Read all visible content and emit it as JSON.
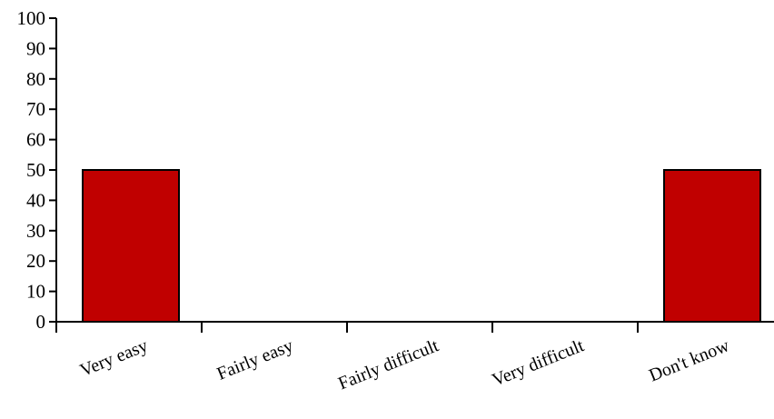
{
  "chart_data": {
    "type": "bar",
    "categories": [
      "Very easy",
      "Fairly easy",
      "Fairly difficult",
      "Very difficult",
      "Don't know"
    ],
    "values": [
      50,
      0,
      0,
      0,
      50
    ],
    "ylim": [
      0,
      100
    ],
    "yticks": [
      0,
      10,
      20,
      30,
      40,
      50,
      60,
      70,
      80,
      90,
      100
    ],
    "title": "",
    "xlabel": "",
    "ylabel": "",
    "grid": false,
    "bar_color": "#c00000"
  }
}
